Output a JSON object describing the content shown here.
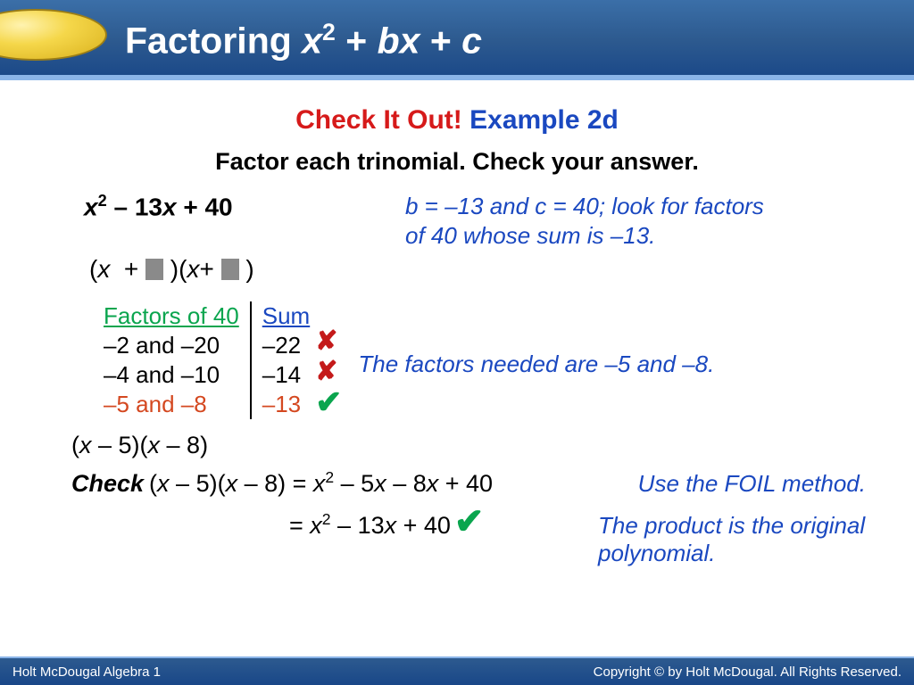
{
  "colors": {
    "header_bg_top": "#3b6fa8",
    "header_bg_bottom": "#194788",
    "accent_line": "#8ab4e8",
    "pill_light": "#fff3b0",
    "pill_dark": "#d9b01c",
    "red": "#d61a1a",
    "blue": "#1a48c0",
    "green": "#0aa54e",
    "orange": "#d44820",
    "gray_box": "#8a8a8a",
    "text": "#000000",
    "white": "#ffffff"
  },
  "header": {
    "title_prefix": "Factoring ",
    "title_var1": "x",
    "title_sup": "2",
    "title_mid": " + ",
    "title_var2": "bx",
    "title_mid2": " + ",
    "title_var3": "c"
  },
  "heading": {
    "check_it_out": "Check It Out!",
    "example": " Example 2d"
  },
  "prompt": "Factor each trinomial. Check your answer.",
  "problem": {
    "trinomial_html": "x² – 13x + 40",
    "explain_line1": "b = –13 and c = 40; look for factors",
    "explain_line2": "of 40 whose sum is –13.",
    "template_open": "(",
    "template_x": "x",
    "template_plus": " + ",
    "template_close": ")(",
    "template_x2": "x",
    "template_plus2": "+ ",
    "template_close2": ")"
  },
  "table": {
    "header_factors": "Factors of 40",
    "header_sum": "Sum",
    "rows": [
      {
        "factors": "–2 and –20",
        "sum": "–22",
        "correct": false
      },
      {
        "factors": "–4 and –10",
        "sum": "–14",
        "correct": false
      },
      {
        "factors": "–5 and –8",
        "sum": "–13",
        "correct": true
      }
    ],
    "side_note": "The factors needed are –5 and –8."
  },
  "answer": "(x – 5)(x – 8)",
  "check": {
    "label": "Check",
    "lhs": "(x – 5)(x – 8)",
    "eq": " = ",
    "rhs1": "x² – 5x – 8x + 40",
    "foil_note": "Use the FOIL method.",
    "rhs2": "= x² – 13x + 40",
    "product_note": "The product is the original polynomial."
  },
  "footer": {
    "left": "Holt McDougal Algebra 1",
    "right": "Copyright © by Holt McDougal. All Rights Reserved."
  }
}
